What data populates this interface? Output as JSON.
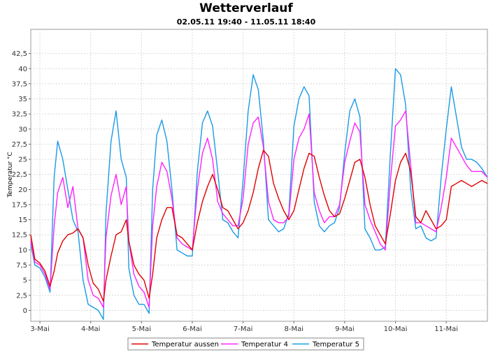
{
  "chart_data": {
    "type": "line",
    "title": "Wetterverlauf",
    "subtitle": "02.05.11 19:40 - 11.05.11 18:40",
    "ylabel": "Temperatur °C",
    "xlabel": "",
    "ylim": [
      -1.8,
      46.5
    ],
    "xlim": [
      2.82,
      11.81
    ],
    "y_ticks": [
      0,
      2.5,
      5,
      7.5,
      10,
      12.5,
      15,
      17.5,
      20,
      22.5,
      25,
      27.5,
      30,
      32.5,
      35,
      37.5,
      40,
      42.5
    ],
    "y_tick_labels": [
      "0",
      "2,5",
      "5",
      "7,5",
      "10",
      "12,5",
      "15",
      "17,5",
      "20",
      "22,5",
      "25",
      "27,5",
      "30",
      "32,5",
      "35",
      "37,5",
      "40",
      "42,5"
    ],
    "x_ticks": [
      3,
      4,
      5,
      6,
      7,
      8,
      9,
      10,
      11
    ],
    "x_tick_labels": [
      "3-Mai",
      "4-Mai",
      "5-Mai",
      "6-Mai",
      "7-Mai",
      "8-Mai",
      "9-Mai",
      "10-Mai",
      "11-Mai"
    ],
    "grid": true,
    "legend_position": "bottom",
    "series": [
      {
        "name": "Temperatur aussen",
        "color": "#e00000",
        "x": [
          2.82,
          2.9,
          3.0,
          3.1,
          3.2,
          3.28,
          3.35,
          3.45,
          3.55,
          3.65,
          3.75,
          3.85,
          3.95,
          4.05,
          4.15,
          4.25,
          4.3,
          4.4,
          4.5,
          4.6,
          4.7,
          4.75,
          4.85,
          4.95,
          5.05,
          5.15,
          5.22,
          5.3,
          5.4,
          5.5,
          5.6,
          5.7,
          5.8,
          5.9,
          6.0,
          6.1,
          6.2,
          6.3,
          6.4,
          6.5,
          6.6,
          6.7,
          6.8,
          6.9,
          7.0,
          7.1,
          7.2,
          7.3,
          7.4,
          7.5,
          7.6,
          7.7,
          7.8,
          7.9,
          8.0,
          8.1,
          8.2,
          8.3,
          8.4,
          8.5,
          8.6,
          8.7,
          8.8,
          8.9,
          9.0,
          9.1,
          9.2,
          9.3,
          9.4,
          9.5,
          9.6,
          9.7,
          9.8,
          9.9,
          10.0,
          10.1,
          10.2,
          10.3,
          10.4,
          10.5,
          10.6,
          10.7,
          10.8,
          10.9,
          11.0,
          11.1,
          11.2,
          11.3,
          11.4,
          11.5,
          11.6,
          11.7,
          11.81
        ],
        "values": [
          12.5,
          8.5,
          7.8,
          6.5,
          4.0,
          6.5,
          9.5,
          11.5,
          12.5,
          12.8,
          13.5,
          12.0,
          7.5,
          4.5,
          3.5,
          1.5,
          5.0,
          9.0,
          12.5,
          13.0,
          15.0,
          11.5,
          7.5,
          6.0,
          5.0,
          2.0,
          6.0,
          12.0,
          15.0,
          17.0,
          17.0,
          12.5,
          12.0,
          11.0,
          10.0,
          14.5,
          18.0,
          20.5,
          22.5,
          20.0,
          17.0,
          16.5,
          15.0,
          13.5,
          14.5,
          16.5,
          19.5,
          23.5,
          26.5,
          25.5,
          21.0,
          18.5,
          16.5,
          15.0,
          16.5,
          20.0,
          23.5,
          26.0,
          25.5,
          22.0,
          19.0,
          16.5,
          15.5,
          16.0,
          18.5,
          21.5,
          24.5,
          25.0,
          22.0,
          17.5,
          14.0,
          12.5,
          11.0,
          16.0,
          21.5,
          24.5,
          26.0,
          23.0,
          15.5,
          14.5,
          16.5,
          15.0,
          13.5,
          14.0,
          15.0,
          20.5,
          21.0,
          21.5,
          21.0,
          20.5,
          21.0,
          21.5,
          21.0
        ]
      },
      {
        "name": "Temperatur 4",
        "color": "#ff22ff",
        "x": [
          2.82,
          2.9,
          3.0,
          3.1,
          3.2,
          3.28,
          3.35,
          3.45,
          3.55,
          3.65,
          3.75,
          3.85,
          3.95,
          4.05,
          4.15,
          4.25,
          4.3,
          4.4,
          4.5,
          4.6,
          4.7,
          4.75,
          4.85,
          4.95,
          5.05,
          5.15,
          5.22,
          5.3,
          5.4,
          5.5,
          5.6,
          5.7,
          5.8,
          5.9,
          6.0,
          6.1,
          6.2,
          6.3,
          6.4,
          6.5,
          6.6,
          6.7,
          6.8,
          6.9,
          7.0,
          7.1,
          7.2,
          7.3,
          7.4,
          7.5,
          7.6,
          7.7,
          7.8,
          7.9,
          8.0,
          8.1,
          8.2,
          8.3,
          8.4,
          8.5,
          8.6,
          8.7,
          8.8,
          8.9,
          9.0,
          9.1,
          9.2,
          9.3,
          9.4,
          9.5,
          9.6,
          9.7,
          9.8,
          9.9,
          10.0,
          10.1,
          10.2,
          10.3,
          10.4,
          10.5,
          10.6,
          10.7,
          10.8,
          10.9,
          11.0,
          11.1,
          11.2,
          11.3,
          11.4,
          11.5,
          11.6,
          11.7,
          11.81
        ],
        "values": [
          11.5,
          8.0,
          7.5,
          6.0,
          3.5,
          14.0,
          19.5,
          22.0,
          17.0,
          20.5,
          13.5,
          12.0,
          5.0,
          2.5,
          2.0,
          0.5,
          12.0,
          19.0,
          22.5,
          17.5,
          20.5,
          11.5,
          6.0,
          4.0,
          3.0,
          0.5,
          14.0,
          20.5,
          24.5,
          23.0,
          18.5,
          12.0,
          11.0,
          10.5,
          10.0,
          20.0,
          26.0,
          28.5,
          25.0,
          18.0,
          16.0,
          15.0,
          14.0,
          14.0,
          18.5,
          27.5,
          31.0,
          32.0,
          27.0,
          18.0,
          15.0,
          14.5,
          14.5,
          15.5,
          25.0,
          28.5,
          30.0,
          32.5,
          19.5,
          16.5,
          14.5,
          15.5,
          15.5,
          17.5,
          24.5,
          28.0,
          31.0,
          29.5,
          17.5,
          15.0,
          13.0,
          11.0,
          10.0,
          21.5,
          30.5,
          31.5,
          33.0,
          24.0,
          14.5,
          14.5,
          14.0,
          13.5,
          13.0,
          17.0,
          22.0,
          28.5,
          27.0,
          25.5,
          24.0,
          23.0,
          23.0,
          23.0,
          22.0
        ]
      },
      {
        "name": "Temperatur 5",
        "color": "#1a9be6",
        "x": [
          2.82,
          2.9,
          3.0,
          3.1,
          3.2,
          3.28,
          3.35,
          3.45,
          3.55,
          3.65,
          3.75,
          3.85,
          3.95,
          4.05,
          4.15,
          4.25,
          4.3,
          4.4,
          4.5,
          4.6,
          4.7,
          4.75,
          4.85,
          4.95,
          5.05,
          5.15,
          5.22,
          5.3,
          5.4,
          5.5,
          5.6,
          5.7,
          5.8,
          5.9,
          6.0,
          6.1,
          6.2,
          6.3,
          6.4,
          6.5,
          6.6,
          6.7,
          6.8,
          6.9,
          7.0,
          7.1,
          7.2,
          7.3,
          7.4,
          7.5,
          7.6,
          7.7,
          7.8,
          7.9,
          8.0,
          8.1,
          8.2,
          8.3,
          8.4,
          8.5,
          8.6,
          8.7,
          8.8,
          8.9,
          9.0,
          9.1,
          9.2,
          9.3,
          9.4,
          9.5,
          9.6,
          9.7,
          9.8,
          9.9,
          10.0,
          10.1,
          10.2,
          10.3,
          10.4,
          10.5,
          10.6,
          10.7,
          10.8,
          10.9,
          11.0,
          11.1,
          11.2,
          11.3,
          11.4,
          11.5,
          11.6,
          11.7,
          11.81
        ],
        "values": [
          11.0,
          7.5,
          7.0,
          5.5,
          3.0,
          22.0,
          28.0,
          25.0,
          20.0,
          15.0,
          13.0,
          5.0,
          1.0,
          0.5,
          0.0,
          -1.5,
          16.0,
          28.0,
          33.0,
          25.0,
          22.0,
          7.0,
          2.5,
          1.0,
          1.0,
          -0.5,
          20.0,
          29.0,
          31.5,
          28.0,
          20.0,
          10.0,
          9.5,
          9.0,
          9.0,
          23.0,
          31.0,
          33.0,
          30.5,
          23.0,
          15.0,
          14.5,
          13.0,
          12.0,
          21.5,
          33.0,
          39.0,
          36.5,
          28.0,
          15.0,
          14.0,
          13.0,
          13.5,
          16.0,
          30.5,
          35.0,
          37.0,
          35.5,
          18.0,
          14.0,
          13.0,
          14.0,
          14.5,
          17.0,
          26.0,
          33.0,
          35.0,
          32.0,
          13.5,
          12.0,
          10.0,
          10.0,
          10.5,
          26.0,
          40.0,
          39.0,
          34.0,
          20.0,
          13.5,
          14.0,
          12.0,
          11.5,
          12.0,
          22.0,
          30.0,
          37.0,
          32.0,
          27.0,
          25.0,
          25.0,
          24.5,
          23.5,
          22.0
        ]
      }
    ]
  }
}
